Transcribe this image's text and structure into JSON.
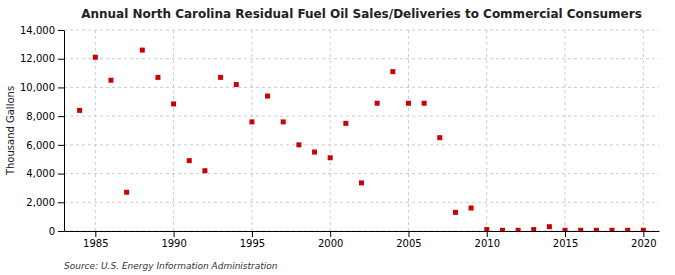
{
  "chart_data": {
    "type": "scatter",
    "title": "Annual North Carolina Residual Fuel Oil Sales/Deliveries to Commercial Consumers",
    "ylabel": "Thousand Gallons",
    "annotation": "Source: U.S. Energy Information Administration",
    "color": "#cc0000",
    "marker": "square",
    "grid": true,
    "xlim": [
      1983,
      2021
    ],
    "ylim": [
      0,
      14000
    ],
    "xticks": [
      1985,
      1990,
      1995,
      2000,
      2005,
      2010,
      2015,
      2020
    ],
    "yticks": [
      0,
      {
        "value": 2000,
        "label": "2,000"
      },
      {
        "value": 4000,
        "label": "4,000"
      },
      {
        "value": 6000,
        "label": "6,000"
      },
      {
        "value": 8000,
        "label": "8,000"
      },
      {
        "value": 10000,
        "label": "10,000"
      },
      {
        "value": 12000,
        "label": "12,000"
      },
      {
        "value": 14000,
        "label": "14,000"
      }
    ],
    "x": [
      1984,
      1985,
      1986,
      1987,
      1988,
      1989,
      1990,
      1991,
      1992,
      1993,
      1994,
      1995,
      1996,
      1997,
      1998,
      1999,
      2000,
      2001,
      2002,
      2003,
      2004,
      2005,
      2006,
      2007,
      2008,
      2009,
      2010,
      2011,
      2012,
      2013,
      2014,
      2015,
      2016,
      2017,
      2018,
      2019,
      2020
    ],
    "values": [
      8400,
      12100,
      10500,
      2700,
      12600,
      10700,
      8850,
      4900,
      4200,
      10700,
      10200,
      7600,
      9400,
      7600,
      6000,
      5500,
      5100,
      7500,
      3350,
      8900,
      11100,
      8900,
      8900,
      6500,
      1300,
      1600,
      100,
      50,
      50,
      100,
      300,
      50,
      50,
      50,
      50,
      50,
      50
    ]
  }
}
